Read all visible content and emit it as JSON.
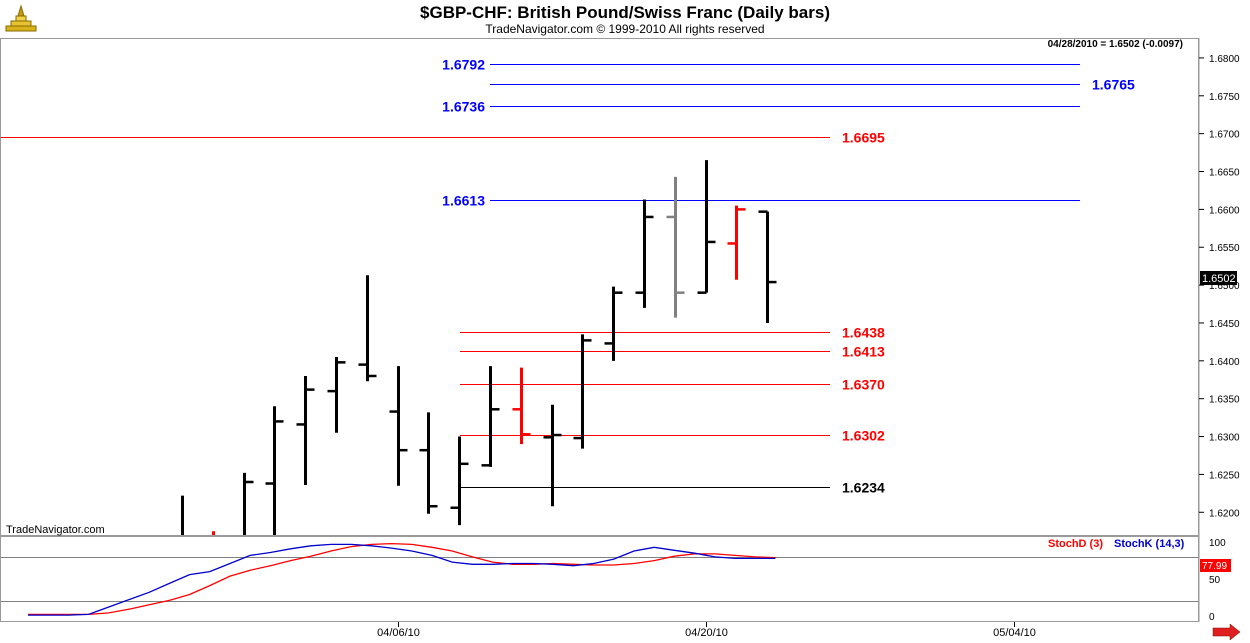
{
  "header": {
    "title": "$GBP-CHF:  British Pound/Swiss Franc  (Daily bars)",
    "copyright": "TradeNavigator.com © 1999-2010 All rights reserved"
  },
  "quote_box": "04/28/2010 = 1.6502 (-0.0097)",
  "watermark": "TradeNavigator.com",
  "last_price_label": "1.6502",
  "chart_data": [
    {
      "type": "ohlc",
      "title": "$GBP-CHF:  British Pound/Swiss Franc  (Daily bars)",
      "ylim": [
        1.617,
        1.6825
      ],
      "y_ticks": [
        "1.6200",
        "1.6250",
        "1.6300",
        "1.6350",
        "1.6400",
        "1.6450",
        "1.6500",
        "1.6550",
        "1.6600",
        "1.6650",
        "1.6700",
        "1.6750",
        "1.6800"
      ],
      "x_ticks": [
        {
          "label": "04/06/10",
          "date": "2010-04-06"
        },
        {
          "label": "04/20/10",
          "date": "2010-04-20"
        },
        {
          "label": "05/04/10",
          "date": "2010-05-04"
        }
      ],
      "bars": [
        {
          "date": "2010-03-26",
          "open": 1.615,
          "high": 1.6222,
          "low": 1.61,
          "close": 1.616,
          "color": "#000000"
        },
        {
          "date": "2010-03-29",
          "open": 1.614,
          "high": 1.6175,
          "low": 1.61,
          "close": 1.616,
          "color": "#ff0000"
        },
        {
          "date": "2010-03-30",
          "open": 1.616,
          "high": 1.6252,
          "low": 1.612,
          "close": 1.624,
          "color": "#000000"
        },
        {
          "date": "2010-03-31",
          "open": 1.6238,
          "high": 1.634,
          "low": 1.617,
          "close": 1.632,
          "color": "#000000"
        },
        {
          "date": "2010-04-01",
          "open": 1.6316,
          "high": 1.638,
          "low": 1.6236,
          "close": 1.6362,
          "color": "#000000"
        },
        {
          "date": "2010-04-02",
          "open": 1.636,
          "high": 1.6405,
          "low": 1.6305,
          "close": 1.6398,
          "color": "#000000"
        },
        {
          "date": "2010-04-05",
          "open": 1.6395,
          "high": 1.6513,
          "low": 1.6373,
          "close": 1.638,
          "color": "#000000"
        },
        {
          "date": "2010-04-06",
          "open": 1.6333,
          "high": 1.6393,
          "low": 1.6235,
          "close": 1.6282,
          "color": "#000000"
        },
        {
          "date": "2010-04-07",
          "open": 1.6282,
          "high": 1.6332,
          "low": 1.6198,
          "close": 1.6208,
          "color": "#000000"
        },
        {
          "date": "2010-04-08",
          "open": 1.6206,
          "high": 1.63,
          "low": 1.6183,
          "close": 1.6264,
          "color": "#000000"
        },
        {
          "date": "2010-04-09",
          "open": 1.6262,
          "high": 1.6393,
          "low": 1.626,
          "close": 1.6336,
          "color": "#000000"
        },
        {
          "date": "2010-04-12",
          "open": 1.6336,
          "high": 1.6391,
          "low": 1.629,
          "close": 1.6303,
          "color": "#ff0000"
        },
        {
          "date": "2010-04-13",
          "open": 1.6299,
          "high": 1.6342,
          "low": 1.6208,
          "close": 1.6302,
          "color": "#000000"
        },
        {
          "date": "2010-04-14",
          "open": 1.6298,
          "high": 1.6435,
          "low": 1.6284,
          "close": 1.6427,
          "color": "#000000"
        },
        {
          "date": "2010-04-15",
          "open": 1.6423,
          "high": 1.6498,
          "low": 1.64,
          "close": 1.649,
          "color": "#000000"
        },
        {
          "date": "2010-04-16",
          "open": 1.649,
          "high": 1.6613,
          "low": 1.647,
          "close": 1.659,
          "color": "#000000"
        },
        {
          "date": "2010-04-19",
          "open": 1.659,
          "high": 1.6643,
          "low": 1.6457,
          "close": 1.649,
          "color": "#808080"
        },
        {
          "date": "2010-04-20",
          "open": 1.649,
          "high": 1.6665,
          "low": 1.649,
          "close": 1.6557,
          "color": "#000000"
        },
        {
          "date": "2010-04-21",
          "open": 1.6555,
          "high": 1.6605,
          "low": 1.6507,
          "close": 1.66,
          "color": "#ff0000"
        },
        {
          "date": "2010-04-22",
          "open": 1.6597,
          "high": 1.6597,
          "low": 1.645,
          "close": 1.6504,
          "color": "#000000"
        }
      ],
      "levels": [
        {
          "value": 1.6792,
          "label": "1.6792",
          "color": "#0000ff"
        },
        {
          "value": 1.6765,
          "label": "1.6765",
          "color": "#0000ff"
        },
        {
          "value": 1.6736,
          "label": "1.6736",
          "color": "#0000ff"
        },
        {
          "value": 1.6695,
          "label": "1.6695",
          "color": "#ff0000"
        },
        {
          "value": 1.6613,
          "label": "1.6613",
          "color": "#0000ff"
        },
        {
          "value": 1.6438,
          "label": "1.6438",
          "color": "#ff0000"
        },
        {
          "value": 1.6413,
          "label": "1.6413",
          "color": "#ff0000"
        },
        {
          "value": 1.637,
          "label": "1.6370",
          "color": "#ff0000"
        },
        {
          "value": 1.6302,
          "label": "1.6302",
          "color": "#ff0000"
        },
        {
          "value": 1.6234,
          "label": "1.6234",
          "color": "#000000"
        }
      ]
    },
    {
      "type": "line",
      "ylim": [
        -7,
        107
      ],
      "y_ticks": [
        "0",
        "50",
        "100"
      ],
      "reference_lines": [
        20,
        80
      ],
      "last_value_label": "77.99",
      "series": [
        {
          "name": "StochD (3)",
          "color": "#ff0000",
          "values": [
            2,
            2,
            2,
            2,
            4,
            9,
            15,
            21,
            29,
            41,
            54,
            62,
            68,
            75,
            81,
            88,
            94,
            97,
            98,
            97,
            93,
            88,
            80,
            73,
            70,
            70,
            71,
            70,
            69,
            69,
            71,
            75,
            81,
            84,
            84,
            82,
            80,
            79
          ]
        },
        {
          "name": "StochK (14,3)",
          "color": "#0000cc",
          "values": [
            1,
            1,
            1,
            2,
            12,
            22,
            32,
            44,
            56,
            60,
            71,
            82,
            86,
            91,
            95,
            97,
            97,
            95,
            92,
            88,
            82,
            73,
            70,
            70,
            71,
            71,
            70,
            68,
            71,
            77,
            88,
            93,
            89,
            85,
            80,
            78,
            78,
            78
          ]
        }
      ]
    }
  ]
}
